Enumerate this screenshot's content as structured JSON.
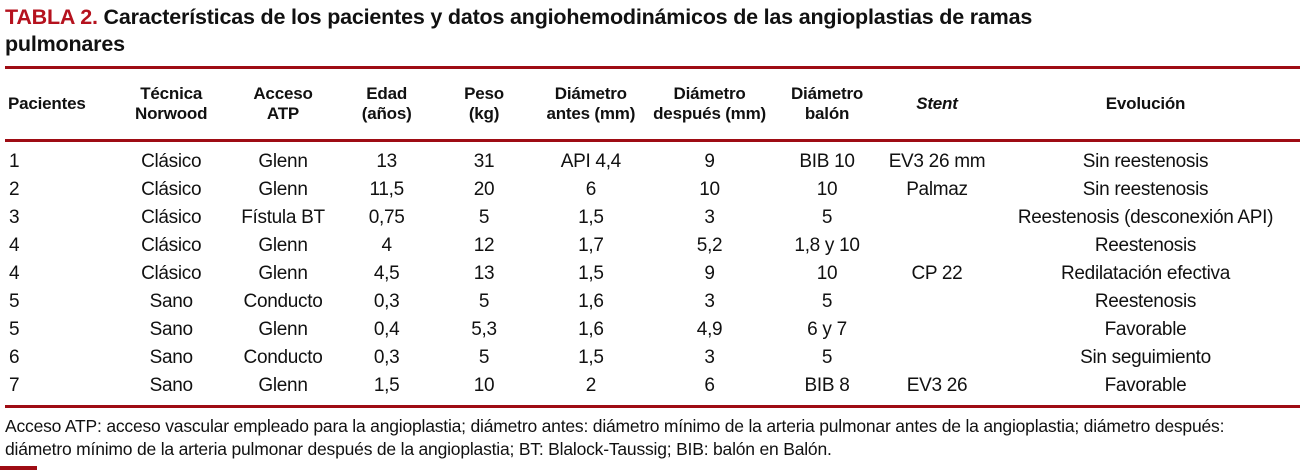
{
  "colors": {
    "title_red": "#b5121e",
    "rule_red": "#9e0c14",
    "text": "#111111",
    "background": "#ffffff"
  },
  "title": {
    "label": "TABLA 2.",
    "line1": "Características de los pacientes y datos angiohemodinámicos de las angioplastias de ramas",
    "line2": "pulmonares"
  },
  "table": {
    "columns": [
      {
        "id": "pacientes",
        "label": "Pacientes",
        "align": "left",
        "italic": false
      },
      {
        "id": "tecnica-norwood",
        "label": "Técnica\nNorwood",
        "align": "center",
        "italic": false
      },
      {
        "id": "acceso-atp",
        "label": "Acceso\nATP",
        "align": "center",
        "italic": false
      },
      {
        "id": "edad",
        "label": "Edad\n(años)",
        "align": "center",
        "italic": false
      },
      {
        "id": "peso",
        "label": "Peso\n(kg)",
        "align": "center",
        "italic": false
      },
      {
        "id": "diametro-antes",
        "label": "Diámetro\nantes (mm)",
        "align": "center",
        "italic": false
      },
      {
        "id": "diametro-despues",
        "label": "Diámetro\ndespués (mm)",
        "align": "center",
        "italic": false
      },
      {
        "id": "diametro-balon",
        "label": "Diámetro\nbalón",
        "align": "center",
        "italic": false
      },
      {
        "id": "stent",
        "label": "Stent",
        "align": "center",
        "italic": true
      },
      {
        "id": "evolucion",
        "label": "Evolución",
        "align": "center",
        "italic": false
      }
    ],
    "rows": [
      [
        "1",
        "Clásico",
        "Glenn",
        "13",
        "31",
        "API 4,4",
        "9",
        "BIB 10",
        "EV3 26 mm",
        "Sin reestenosis"
      ],
      [
        "2",
        "Clásico",
        "Glenn",
        "11,5",
        "20",
        "6",
        "10",
        "10",
        "Palmaz",
        "Sin reestenosis"
      ],
      [
        "3",
        "Clásico",
        "Fístula BT",
        "0,75",
        "5",
        "1,5",
        "3",
        "5",
        "",
        "Reestenosis (desconexión API)"
      ],
      [
        "4",
        "Clásico",
        "Glenn",
        "4",
        "12",
        "1,7",
        "5,2",
        "1,8 y 10",
        "",
        "Reestenosis"
      ],
      [
        "4",
        "Clásico",
        "Glenn",
        "4,5",
        "13",
        "1,5",
        "9",
        "10",
        "CP 22",
        "Redilatación efectiva"
      ],
      [
        "5",
        "Sano",
        "Conducto",
        "0,3",
        "5",
        "1,6",
        "3",
        "5",
        "",
        "Reestenosis"
      ],
      [
        "5",
        "Sano",
        "Glenn",
        "0,4",
        "5,3",
        "1,6",
        "4,9",
        "6 y 7",
        "",
        "Favorable"
      ],
      [
        "6",
        "Sano",
        "Conducto",
        "0,3",
        "5",
        "1,5",
        "3",
        "5",
        "",
        "Sin seguimiento"
      ],
      [
        "7",
        "Sano",
        "Glenn",
        "1,5",
        "10",
        "2",
        "6",
        "BIB 8",
        "EV3 26",
        "Favorable"
      ]
    ]
  },
  "footnote": {
    "lines": [
      "Acceso ATP: acceso vascular empleado para la angioplastia; diámetro antes: diámetro mínimo de la arteria pulmonar antes de la angioplastia; diámetro después:",
      "diámetro mínimo de la arteria pulmonar después de la angioplastia; BT: Blalock-Taussig; BIB: balón en Balón."
    ]
  }
}
